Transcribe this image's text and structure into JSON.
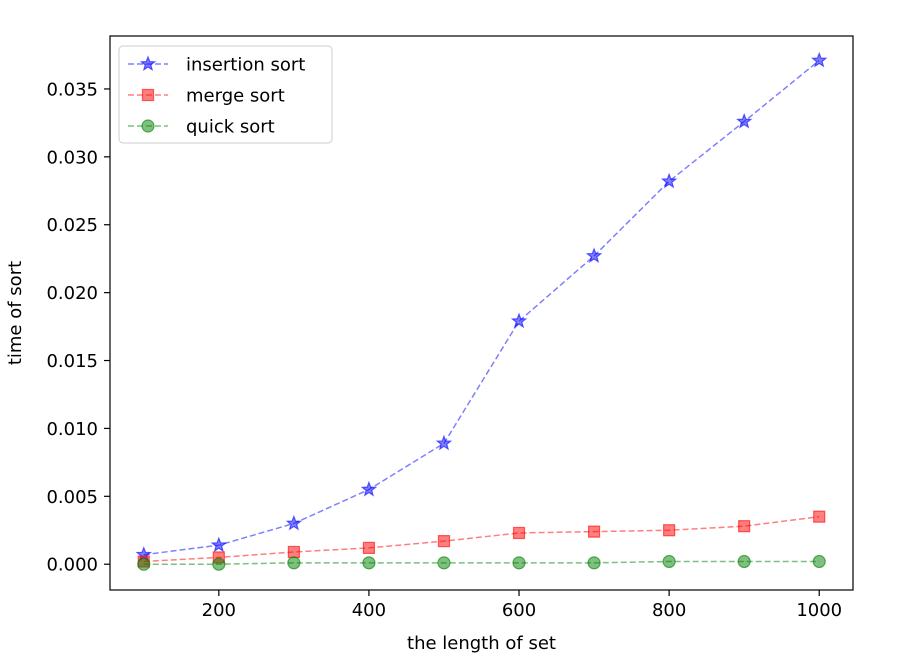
{
  "chart_data": {
    "type": "line",
    "title": "",
    "xlabel": "the length of set",
    "ylabel": "time of sort",
    "xlim": [
      55,
      1045
    ],
    "ylim": [
      -0.0019,
      0.0389
    ],
    "xticks": [
      200,
      400,
      600,
      800,
      1000
    ],
    "xtick_labels": [
      "200",
      "400",
      "600",
      "800",
      "1000"
    ],
    "yticks": [
      0.0,
      0.005,
      0.01,
      0.015,
      0.02,
      0.025,
      0.03,
      0.035
    ],
    "ytick_labels": [
      "0.000",
      "0.005",
      "0.010",
      "0.015",
      "0.020",
      "0.025",
      "0.030",
      "0.035"
    ],
    "grid": false,
    "legend_position": "top-left",
    "x": [
      100,
      200,
      300,
      400,
      500,
      600,
      700,
      800,
      900,
      1000
    ],
    "series": [
      {
        "name": "insertion sort",
        "color": "#0000ff",
        "marker": "star",
        "linestyle": "dashed",
        "values": [
          0.0007,
          0.0014,
          0.003,
          0.0055,
          0.0089,
          0.0179,
          0.0227,
          0.0282,
          0.0326,
          0.0371
        ]
      },
      {
        "name": "merge sort",
        "color": "#ff0000",
        "marker": "square",
        "linestyle": "dashed",
        "values": [
          0.0002,
          0.0005,
          0.0009,
          0.0012,
          0.0017,
          0.0023,
          0.0024,
          0.0025,
          0.0028,
          0.0035
        ]
      },
      {
        "name": "quick sort",
        "color": "#008000",
        "marker": "circle",
        "linestyle": "dashed",
        "values": [
          0.0,
          0.0,
          0.0001,
          0.0001,
          0.0001,
          0.0001,
          0.0001,
          0.0002,
          0.0002,
          0.0002
        ]
      }
    ]
  }
}
